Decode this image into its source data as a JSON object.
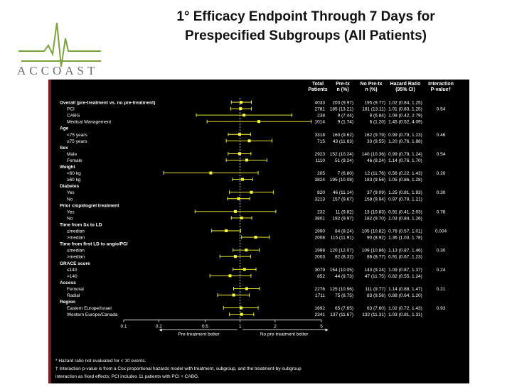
{
  "header": {
    "title_line1": "1° Efficacy Endpoint Through 7 Days for",
    "title_line2": "Prespecified Subgroups (All Patients)",
    "logo_text": "ACCOAST",
    "logo_line_color": "#7aa33d"
  },
  "colors": {
    "background": "#ffffff",
    "panel": "#000000",
    "text": "#ffffff",
    "marker": "#ffff33",
    "axis": "#ffffff"
  },
  "chart_data": {
    "type": "forest",
    "x_scale": "log",
    "xlim": [
      0.1,
      5
    ],
    "x_ticks": [
      "0.1",
      "0.2",
      "0.5",
      "1",
      "2",
      "5"
    ],
    "x_tick_values": [
      0.1,
      0.2,
      0.5,
      1,
      2,
      5
    ],
    "reference_line": 1,
    "direction_labels": [
      "Pre-treatment better",
      "No pre-treatment better"
    ],
    "columns": [
      "Total Patients",
      "Pre-tx n (%)",
      "No Pre-tx n (%)",
      "Hazard Ratio (95% CI)",
      "Interaction P-value†"
    ],
    "rows": [
      {
        "label": "Overall (pre-treatment vs. no pre-treatment)",
        "header": false,
        "indent": false,
        "total": "4033",
        "pre": "203 (9.97)",
        "nopre": "195 (9.77)",
        "hr_text": "1.02 (0.84, 1.25)",
        "p": "",
        "hr": 1.02,
        "lo": 0.84,
        "hi": 1.25
      },
      {
        "label": "PCI",
        "header": false,
        "indent": true,
        "total": "2781",
        "pre": "185 (13.21)",
        "nopre": "181 (13.11)",
        "hr_text": "1.01 (0.83, 1.25)",
        "p": "0.54",
        "hr": 1.01,
        "lo": 0.83,
        "hi": 1.25
      },
      {
        "label": "CABG",
        "header": false,
        "indent": true,
        "total": "238",
        "pre": "9 (7.44)",
        "nopre": "8 (6.84)",
        "hr_text": "1.08 (0.42, 2.79)",
        "p": "",
        "hr": 1.08,
        "lo": 0.42,
        "hi": 2.79
      },
      {
        "label": "Medical Management",
        "header": false,
        "indent": true,
        "total": "1014",
        "pre": "9 (1.74)",
        "nopre": "6 (1.20)",
        "hr_text": "1.45 (0.52, 4.09)",
        "p": "",
        "hr": 1.45,
        "lo": 0.52,
        "hi": 4.09
      },
      {
        "label": "Age",
        "header": true,
        "indent": false
      },
      {
        "label": "<75 years",
        "header": false,
        "indent": true,
        "total": "3318",
        "pre": "160 (9.62)",
        "nopre": "162 (9.79)",
        "hr_text": "0.99 (0.79, 1.23)",
        "p": "0.46",
        "hr": 0.99,
        "lo": 0.79,
        "hi": 1.23
      },
      {
        "label": "≥75 years",
        "header": false,
        "indent": true,
        "total": "715",
        "pre": "43 (11.63)",
        "nopre": "33 (9.55)",
        "hr_text": "1.20 (0.76, 1.88)",
        "p": "",
        "hr": 1.2,
        "lo": 0.76,
        "hi": 1.88
      },
      {
        "label": "Sex",
        "header": true,
        "indent": false
      },
      {
        "label": "Male",
        "header": false,
        "indent": true,
        "total": "2923",
        "pre": "152 (10.24)",
        "nopre": "140 (10.36)",
        "hr_text": "0.99 (0.79, 1.24)",
        "p": "0.54",
        "hr": 0.99,
        "lo": 0.79,
        "hi": 1.24
      },
      {
        "label": "Female",
        "header": false,
        "indent": true,
        "total": "1110",
        "pre": "51 (9.24)",
        "nopre": "46 (8.24)",
        "hr_text": "1.14 (0.76, 1.70)",
        "p": "",
        "hr": 1.14,
        "lo": 0.76,
        "hi": 1.7
      },
      {
        "label": "Weight",
        "header": true,
        "indent": false
      },
      {
        "label": "<60 kg",
        "header": false,
        "indent": true,
        "total": "205",
        "pre": "7 (6.80)",
        "nopre": "12 (11.76)",
        "hr_text": "0.56 (0.22, 1.43)",
        "p": "0.20",
        "hr": 0.56,
        "lo": 0.22,
        "hi": 1.43
      },
      {
        "label": "≥60 kg",
        "header": false,
        "indent": true,
        "total": "3824",
        "pre": "195 (10.08)",
        "nopre": "183 (9.56)",
        "hr_text": "1.05 (0.86, 1.28)",
        "p": "",
        "hr": 1.05,
        "lo": 0.86,
        "hi": 1.28
      },
      {
        "label": "Diabetes",
        "header": true,
        "indent": false
      },
      {
        "label": "Yes",
        "header": false,
        "indent": true,
        "total": "820",
        "pre": "46 (11.14)",
        "nopre": "37 (9.09)",
        "hr_text": "1.25 (0.81, 1.93)",
        "p": "0.30",
        "hr": 1.25,
        "lo": 0.81,
        "hi": 1.93
      },
      {
        "label": "No",
        "header": false,
        "indent": true,
        "total": "3213",
        "pre": "157 (9.67)",
        "nopre": "158 (9.94)",
        "hr_text": "0.97 (0.78, 1.21)",
        "p": "",
        "hr": 0.97,
        "lo": 0.78,
        "hi": 1.21
      },
      {
        "label": "Prior clopidogrel treatment",
        "header": true,
        "indent": false
      },
      {
        "label": "Yes",
        "header": false,
        "indent": true,
        "total": "232",
        "pre": "11 (9.82)",
        "nopre": "13 (10.83)",
        "hr_text": "0.91 (0.41, 2.03)",
        "p": "0.78",
        "hr": 0.91,
        "lo": 0.41,
        "hi": 2.03
      },
      {
        "label": "No",
        "header": false,
        "indent": true,
        "total": "3801",
        "pre": "192 (9.97)",
        "nopre": "182 (9.70)",
        "hr_text": "1.03 (0.84, 1.26)",
        "p": "",
        "hr": 1.03,
        "lo": 0.84,
        "hi": 1.26
      },
      {
        "label": "Time from Sx to LD",
        "header": true,
        "indent": false
      },
      {
        "label": "≤median",
        "header": false,
        "indent": true,
        "total": "1990",
        "pre": "84 (8.24)",
        "nopre": "105 (10.82)",
        "hr_text": "0.76 (0.57, 1.01)",
        "p": "0.004",
        "hr": 0.76,
        "lo": 0.57,
        "hi": 1.01
      },
      {
        "label": ">median",
        "header": false,
        "indent": true,
        "total": "2008",
        "pre": "115 (11.91)",
        "nopre": "90 (8.92)",
        "hr_text": "1.36 (1.03, 1.78)",
        "p": "",
        "hr": 1.36,
        "lo": 1.03,
        "hi": 1.78
      },
      {
        "label": "Time from first LD to angio/PCI",
        "header": true,
        "indent": false
      },
      {
        "label": "≤median",
        "header": false,
        "indent": true,
        "total": "1998",
        "pre": "120 (12.07)",
        "nopre": "109 (10.86)",
        "hr_text": "1.13 (0.87, 1.46)",
        "p": "0.30",
        "hr": 1.13,
        "lo": 0.87,
        "hi": 1.46
      },
      {
        "label": ">median",
        "header": false,
        "indent": true,
        "total": "2003",
        "pre": "82 (8.32)",
        "nopre": "86 (8.77)",
        "hr_text": "0.91 (0.67, 1.23)",
        "p": "",
        "hr": 0.91,
        "lo": 0.67,
        "hi": 1.23
      },
      {
        "label": "GRACE score",
        "header": true,
        "indent": false
      },
      {
        "label": "≤140",
        "header": false,
        "indent": true,
        "total": "3079",
        "pre": "154 (10.05)",
        "nopre": "143 (9.24)",
        "hr_text": "1.09 (0.87, 1.37)",
        "p": "0.24",
        "hr": 1.09,
        "lo": 0.87,
        "hi": 1.37
      },
      {
        "label": ">140",
        "header": false,
        "indent": true,
        "total": "852",
        "pre": "44 (9.73)",
        "nopre": "47 (11.75)",
        "hr_text": "0.82 (0.55, 1.24)",
        "p": "",
        "hr": 0.82,
        "lo": 0.55,
        "hi": 1.24
      },
      {
        "label": "Access",
        "header": true,
        "indent": false
      },
      {
        "label": "Femoral",
        "header": false,
        "indent": true,
        "total": "2276",
        "pre": "125 (10.96)",
        "nopre": "111 (9.77)",
        "hr_text": "1.14 (0.88, 1.47)",
        "p": "0.21",
        "hr": 1.14,
        "lo": 0.88,
        "hi": 1.47
      },
      {
        "label": "Radial",
        "header": false,
        "indent": true,
        "total": "1711",
        "pre": "75 (8.75)",
        "nopre": "83 (9.56)",
        "hr_text": "0.88 (0.64, 1.20)",
        "p": "",
        "hr": 0.88,
        "lo": 0.64,
        "hi": 1.2
      },
      {
        "label": "Region",
        "header": true,
        "indent": false
      },
      {
        "label": "Eastern Europe/Israel",
        "header": false,
        "indent": true,
        "total": "1692",
        "pre": "65 (7.65)",
        "nopre": "63 (7.60)",
        "hr_text": "1.02 (0.72, 1.43)",
        "p": "0.93",
        "hr": 1.02,
        "lo": 0.72,
        "hi": 1.43
      },
      {
        "label": "Western Europe/Canada",
        "header": false,
        "indent": true,
        "total": "2341",
        "pre": "137 (11.67)",
        "nopre": "132 (11.31)",
        "hr_text": "1.03 (0.81, 1.31)",
        "p": "",
        "hr": 1.03,
        "lo": 0.81,
        "hi": 1.31
      }
    ]
  },
  "footnotes": {
    "line1": "* Hazard ratio not evaluated for < 10 events.",
    "line2": "† Interaction p-value is from a Cox proportional hazards model with treatment, subgroup, and the treatment-by-subgroup",
    "line3": "interaction as fixed effects; PCI includes 11 patients with PCI + CABG."
  }
}
